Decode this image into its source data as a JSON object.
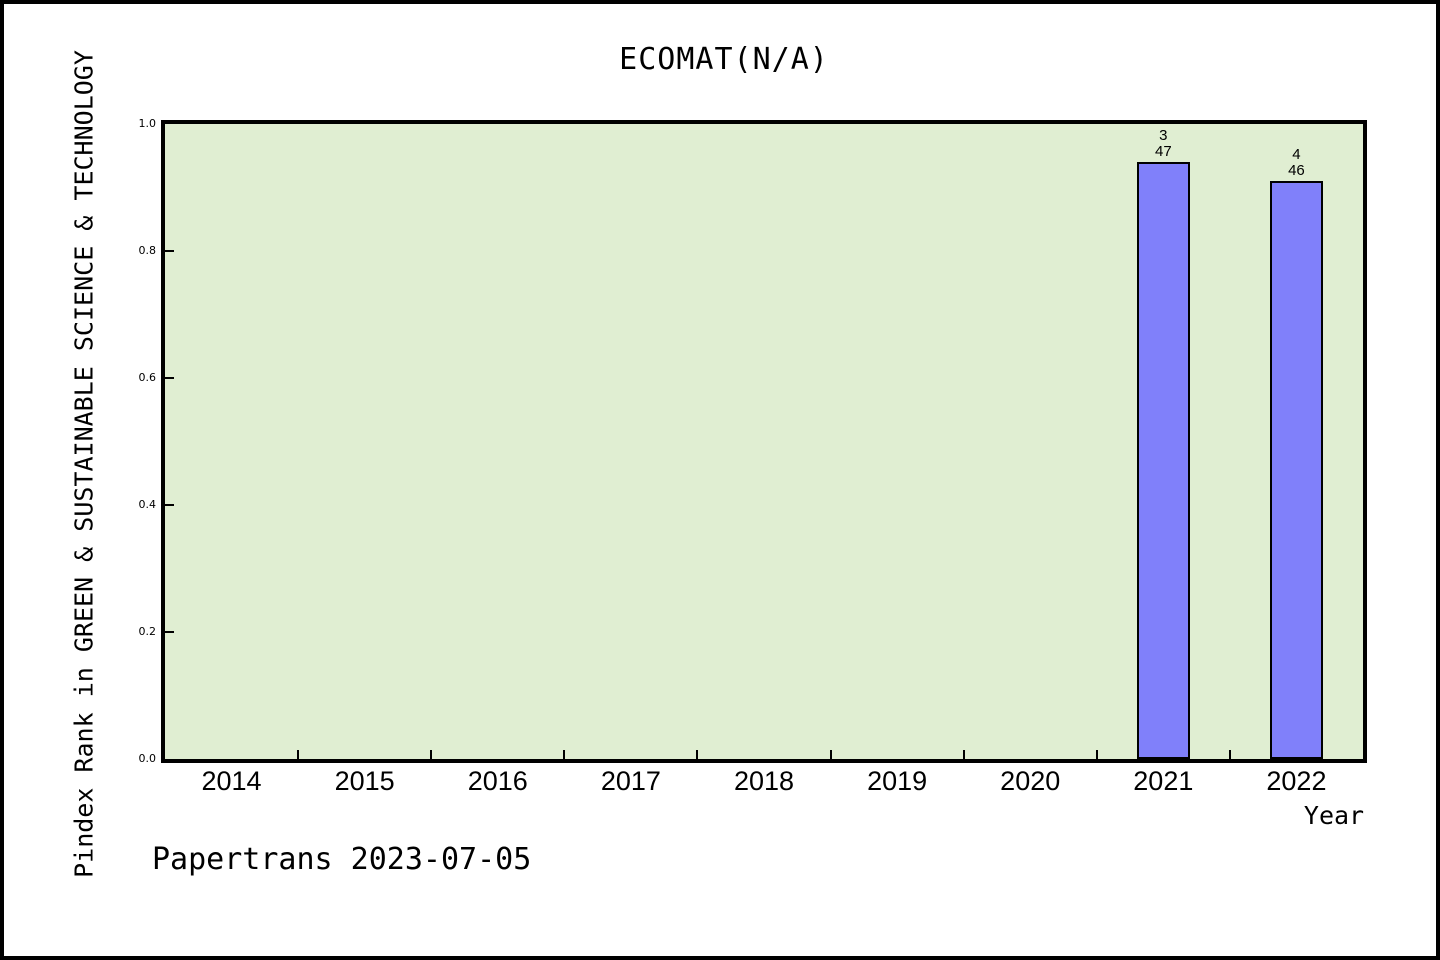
{
  "header": {
    "title": "ECOMAT(N/A)"
  },
  "footer": {
    "text": "Papertrans 2023-07-05"
  },
  "chart_data": {
    "type": "bar",
    "title": "ECOMAT(N/A)",
    "xlabel": "Year",
    "ylabel": "Pindex Rank in GREEN & SUSTAINABLE SCIENCE & TECHNOLOGY",
    "categories": [
      "2014",
      "2015",
      "2016",
      "2017",
      "2018",
      "2019",
      "2020",
      "2021",
      "2022"
    ],
    "values": [
      null,
      null,
      null,
      null,
      null,
      null,
      null,
      0.94,
      0.91
    ],
    "bar_annotations": [
      {
        "category": "2021",
        "lines": [
          "3",
          "47"
        ]
      },
      {
        "category": "2022",
        "lines": [
          "4",
          "46"
        ]
      }
    ],
    "ylim": [
      0.0,
      1.0
    ],
    "yticks": [
      0.0,
      0.2,
      0.4,
      0.6,
      0.8,
      1.0
    ],
    "ytick_labels": [
      "0.0",
      "0.2",
      "0.4",
      "0.6",
      "0.8",
      "1.0"
    ],
    "grid": false,
    "legend": false,
    "colors": {
      "plot_bg": "#e0eed2",
      "bar_fill": "#8080fa",
      "bar_edge": "#000000",
      "axis": "#000000"
    }
  }
}
